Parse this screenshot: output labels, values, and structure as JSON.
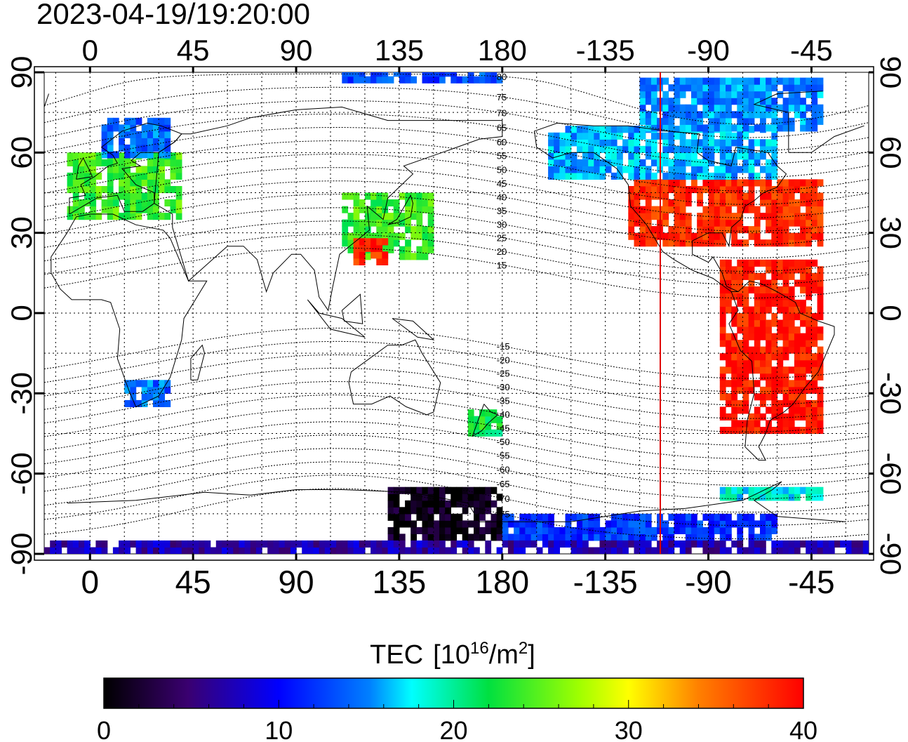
{
  "timestamp": "2023-04-19/19:20:00",
  "axes": {
    "x_top_ticks": [
      "0",
      "45",
      "90",
      "135",
      "180",
      "-135",
      "-90",
      "-45"
    ],
    "x_bottom_ticks": [
      "0",
      "45",
      "90",
      "135",
      "180",
      "-135",
      "-90",
      "-45"
    ],
    "y_left_ticks": [
      "90",
      "60",
      "30",
      "0",
      "-30",
      "-60",
      "-90"
    ],
    "y_right_ticks": [
      "90",
      "60",
      "30",
      "0",
      "-30",
      "-60",
      "-90"
    ],
    "lon_range": [
      -20,
      340
    ],
    "lat_range": [
      -90,
      90
    ]
  },
  "magnetic_latitude_labels": [
    "80",
    "75",
    "70",
    "65",
    "60",
    "55",
    "50",
    "45",
    "40",
    "35",
    "30",
    "25",
    "20",
    "15",
    "-15",
    "-20",
    "-25",
    "-30",
    "-35",
    "-40",
    "-45",
    "-50",
    "-55",
    "-60",
    "-65",
    "-70",
    "-75"
  ],
  "terminator_lon": -111,
  "colorbar": {
    "title_main": "TEC",
    "title_unit_base": "[10",
    "title_unit_exp": "16",
    "title_unit_mid": "/m",
    "title_unit_exp2": "2",
    "title_unit_end": "]",
    "ticks": [
      "0",
      "10",
      "20",
      "30",
      "40"
    ],
    "min": 0,
    "max": 40
  },
  "colors": {
    "terminator": "#e00000",
    "grid": "#000000"
  },
  "tec_regions": [
    {
      "name": "north-america-high",
      "lon": [
        -125,
        -40
      ],
      "lat": [
        25,
        50
      ],
      "tec": 38
    },
    {
      "name": "south-america-high",
      "lon": [
        -85,
        -40
      ],
      "lat": [
        -45,
        20
      ],
      "tec": 39
    },
    {
      "name": "canada-mid",
      "lon": [
        -160,
        -60
      ],
      "lat": [
        50,
        68
      ],
      "tec": 16
    },
    {
      "name": "arctic-america",
      "lon": [
        -120,
        -40
      ],
      "lat": [
        68,
        88
      ],
      "tec": 15
    },
    {
      "name": "europe",
      "lon": [
        -10,
        40
      ],
      "lat": [
        35,
        60
      ],
      "tec": 24
    },
    {
      "name": "scandinavia",
      "lon": [
        5,
        35
      ],
      "lat": [
        58,
        72
      ],
      "tec": 14
    },
    {
      "name": "east-asia",
      "lon": [
        110,
        150
      ],
      "lat": [
        20,
        45
      ],
      "tec": 24
    },
    {
      "name": "south-china",
      "lon": [
        115,
        130
      ],
      "lat": [
        18,
        28
      ],
      "tec": 38
    },
    {
      "name": "southern-africa",
      "lon": [
        15,
        35
      ],
      "lat": [
        -35,
        -25
      ],
      "tec": 14
    },
    {
      "name": "new-zealand",
      "lon": [
        165,
        178
      ],
      "lat": [
        -46,
        -36
      ],
      "tec": 22
    },
    {
      "name": "antarctica-dark",
      "lon": [
        130,
        180
      ],
      "lat": [
        -85,
        -65
      ],
      "tec": 1
    },
    {
      "name": "southern-ocean-band",
      "lon": [
        180,
        300
      ],
      "lat": [
        -85,
        -75
      ],
      "tec": 12
    },
    {
      "name": "south-atlantic-band",
      "lon": [
        -85,
        -40
      ],
      "lat": [
        -70,
        -65
      ],
      "tec": 18
    },
    {
      "name": "south-pole-band",
      "lon": [
        -20,
        340
      ],
      "lat": [
        -90,
        -86
      ],
      "tec": 7
    },
    {
      "name": "north-pole-band",
      "lon": [
        110,
        180
      ],
      "lat": [
        86,
        89
      ],
      "tec": 13
    }
  ]
}
